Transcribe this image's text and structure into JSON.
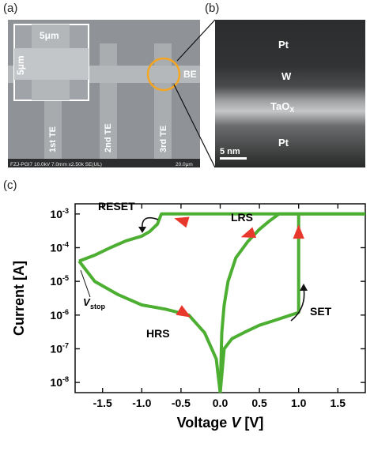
{
  "panels": {
    "a": {
      "label": "(a)",
      "inset_width": "5μm",
      "inset_height": "5μm",
      "electrodes": [
        "1st TE",
        "2nd TE",
        "3rd TE"
      ],
      "bottom_electrode": "BE",
      "footer_left": "FZJ-PGI7 10.0kV 7.0mm x2.50k SE(UL)",
      "footer_right": "20.0μm"
    },
    "b": {
      "label": "(b)",
      "layers": [
        "Pt",
        "W",
        "TaOX",
        "Pt"
      ],
      "scalebar": "5 nm"
    },
    "c": {
      "label": "(c)"
    }
  },
  "chart_data": {
    "type": "line",
    "xlabel": "Voltage V [V]",
    "ylabel": "Current [A]",
    "xlim": [
      -1.85,
      1.85
    ],
    "ylim": [
      5e-09,
      0.002
    ],
    "yscale": "log",
    "xticks": [
      -1.5,
      -1.0,
      -0.5,
      0.0,
      0.5,
      1.0,
      1.5
    ],
    "xtick_labels": [
      "-1.5",
      "-1.0",
      "-0.5",
      "0.0",
      "0.5",
      "1.0",
      "1.5"
    ],
    "yticks": [
      1e-08,
      1e-07,
      1e-06,
      1e-05,
      0.0001,
      0.001
    ],
    "ytick_labels": [
      "10-8",
      "10-7",
      "10-6",
      "10-5",
      "10-4",
      "10-3"
    ],
    "annotations": [
      "RESET",
      "LRS",
      "HRS",
      "SET",
      "Vstop"
    ],
    "line_color": "#4caf32",
    "arrow_color": "#e8382c",
    "series": [
      {
        "values": [
          [
            0.0,
            5e-09
          ],
          [
            0.02,
            3e-07
          ],
          [
            0.05,
            2e-06
          ],
          [
            0.1,
            1e-05
          ],
          [
            0.2,
            5e-05
          ],
          [
            0.35,
            0.00015
          ],
          [
            0.5,
            0.00035
          ],
          [
            0.62,
            0.0006
          ],
          [
            0.75,
            0.001
          ],
          [
            1.0,
            0.001
          ],
          [
            1.85,
            0.001
          ]
        ]
      },
      {
        "values": [
          [
            1.85,
            0.001
          ],
          [
            1.0,
            0.001
          ],
          [
            -0.2,
            0.001
          ],
          [
            -0.75,
            0.001
          ],
          [
            -0.8,
            0.0005
          ],
          [
            -0.9,
            0.0003
          ],
          [
            -1.0,
            0.00022
          ],
          [
            -1.2,
            0.00016
          ],
          [
            -1.4,
            0.0001
          ],
          [
            -1.6,
            6e-05
          ],
          [
            -1.8,
            4e-05
          ]
        ]
      },
      {
        "values": [
          [
            -1.8,
            4e-05
          ],
          [
            -1.6,
            1e-05
          ],
          [
            -1.3,
            4e-06
          ],
          [
            -1.0,
            2e-06
          ],
          [
            -0.7,
            1.5e-06
          ],
          [
            -0.4,
            1e-06
          ],
          [
            -0.2,
            3e-07
          ],
          [
            -0.05,
            5e-08
          ],
          [
            0.0,
            5e-09
          ]
        ]
      },
      {
        "values": [
          [
            0.0,
            5e-09
          ],
          [
            0.05,
            1e-07
          ],
          [
            0.15,
            2e-07
          ],
          [
            0.3,
            3e-07
          ],
          [
            0.5,
            5e-07
          ],
          [
            0.7,
            7e-07
          ],
          [
            0.9,
            1e-06
          ],
          [
            1.0,
            1.2e-06
          ],
          [
            1.0,
            0.001
          ]
        ]
      }
    ]
  }
}
